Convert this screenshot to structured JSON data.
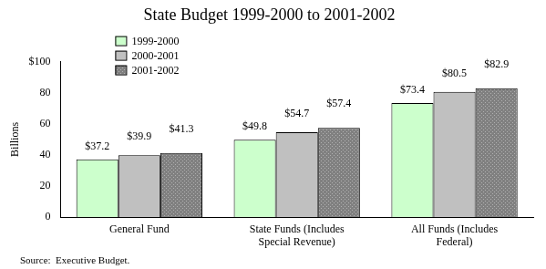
{
  "chart_data": {
    "type": "bar",
    "title": "State Budget 1999-2000 to 2001-2002",
    "y_label": "Billions",
    "annotations": [
      "Source:  Executive Budget."
    ],
    "categories": [
      "General Fund",
      "State Funds (Includes Special Revenue)",
      "All Funds (Includes Federal)"
    ],
    "series": [
      {
        "name": "1999-2000",
        "color": "#ccffcc",
        "values": [
          37.2,
          49.8,
          73.4
        ],
        "value_labels": [
          "$37.2",
          "$49.8",
          "$73.4"
        ]
      },
      {
        "name": "2000-2001",
        "color": "#c0c0c0",
        "values": [
          39.9,
          54.7,
          80.5
        ],
        "value_labels": [
          "$39.9",
          "$54.7",
          "$80.5"
        ]
      },
      {
        "name": "2001-2002",
        "color": "#808080",
        "values": [
          41.3,
          57.4,
          82.9
        ],
        "value_labels": [
          "$41.3",
          "$57.4",
          "$82.9"
        ]
      }
    ],
    "ylim": [
      0,
      100
    ],
    "yticks": [
      0,
      20,
      40,
      60,
      80,
      {
        "value": 100,
        "label": "$100"
      }
    ],
    "grid": false,
    "legend": "upper left",
    "data_labels": true
  }
}
